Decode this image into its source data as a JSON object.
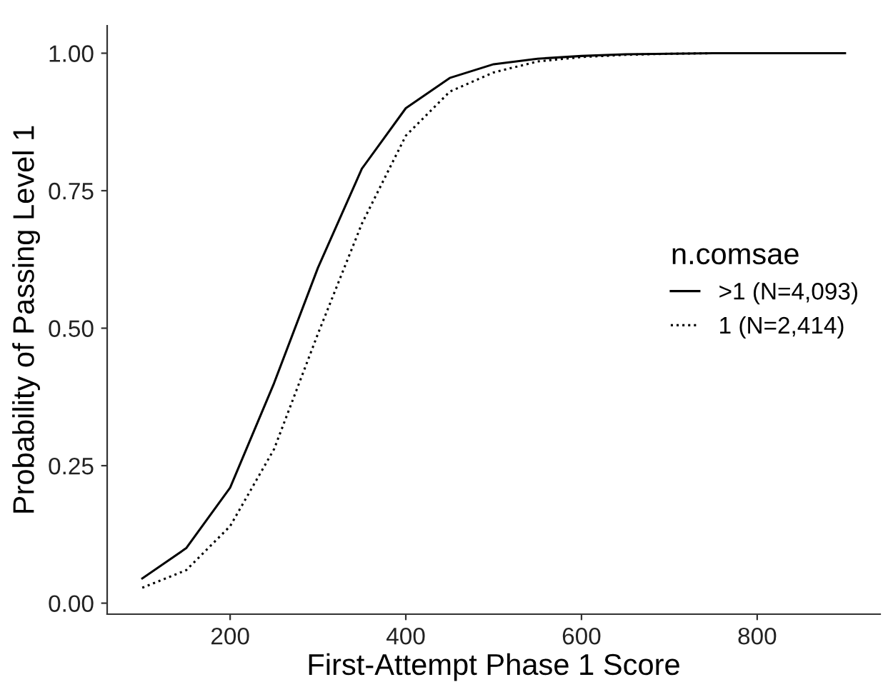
{
  "chart_data": {
    "type": "line",
    "xlabel": "First-Attempt Phase 1 Score",
    "ylabel": "Probability of Passing Level 1",
    "legend_title": "n.comsae",
    "x": [
      100,
      150,
      200,
      250,
      300,
      350,
      400,
      450,
      500,
      550,
      600,
      650,
      700,
      750,
      800,
      850,
      900
    ],
    "series": [
      {
        "name": ">1 (N=4,093)",
        "color": "#000000",
        "line_style": "solid",
        "values": [
          0.045,
          0.1,
          0.21,
          0.4,
          0.61,
          0.79,
          0.9,
          0.955,
          0.98,
          0.99,
          0.995,
          0.998,
          0.999,
          1.0,
          1.0,
          1.0,
          1.0
        ]
      },
      {
        "name": "1 (N=2,414)",
        "color": "#000000",
        "line_style": "dotted",
        "values": [
          0.028,
          0.06,
          0.14,
          0.28,
          0.49,
          0.69,
          0.85,
          0.93,
          0.965,
          0.985,
          0.993,
          0.997,
          0.999,
          1.0,
          1.0,
          1.0,
          1.0
        ]
      }
    ],
    "xlim": [
      60,
      940
    ],
    "ylim": [
      -0.02,
      1.05
    ],
    "xticks": [
      200,
      400,
      600,
      800
    ],
    "yticks": [
      {
        "value": 0,
        "label": "0.00"
      },
      {
        "value": 0.25,
        "label": "0.25"
      },
      {
        "value": 0.5,
        "label": "0.50"
      },
      {
        "value": 0.75,
        "label": "0.75"
      },
      {
        "value": 1,
        "label": "1.00"
      }
    ],
    "grid": false,
    "legend": "center right",
    "marker": "none"
  }
}
